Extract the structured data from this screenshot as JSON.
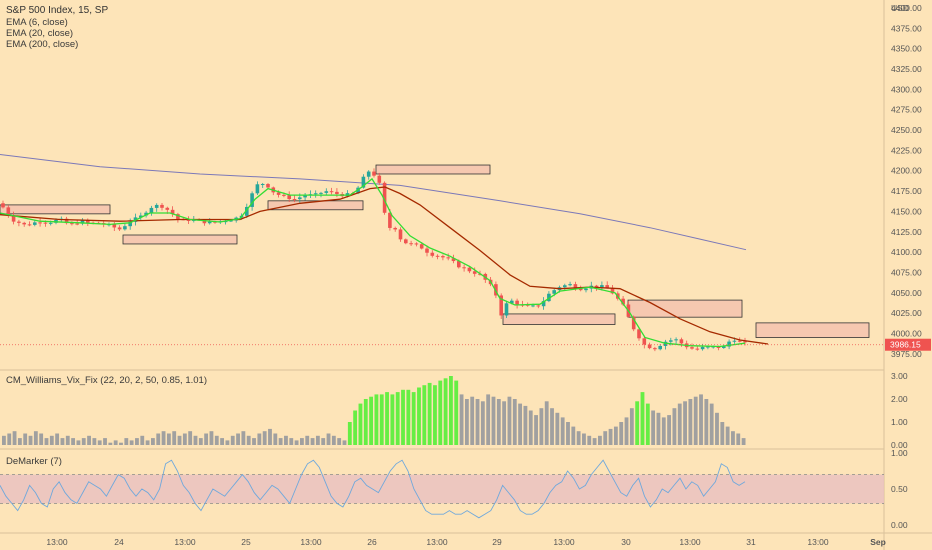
{
  "colors": {
    "background": "#fde4b8",
    "up": "#26a69a",
    "down": "#ef5350",
    "ema6": "#33dd33",
    "ema20": "#a52a00",
    "ema200": "#7b78b8",
    "zone_fill": "#f6c8b0",
    "zone_stroke": "#333333",
    "vix_hi": "#66ee44",
    "vix_lo": "#a0a0a0",
    "demarker": "#6fa8dc",
    "demarker_band": "#e8bfc0",
    "price_tag": "#ef5350"
  },
  "chart_data": [
    {
      "type": "candlestick",
      "title": "S&P 500 Index, 15, SP",
      "legend": [
        "EMA (6, close)",
        "EMA (20, close)",
        "EMA (200, close)"
      ],
      "currency": "USD",
      "ylim": [
        3960,
        4400
      ],
      "yticks": [
        "4400.00",
        "4375.00",
        "4350.00",
        "4325.00",
        "4300.00",
        "4275.00",
        "4250.00",
        "4225.00",
        "4200.00",
        "4175.00",
        "4150.00",
        "4125.00",
        "4100.00",
        "4075.00",
        "4050.00",
        "4025.00",
        "4000.00",
        "3975.00"
      ],
      "last_price": "3986.15",
      "price_path": [
        [
          0,
          4160
        ],
        [
          12,
          4140
        ],
        [
          25,
          4133
        ],
        [
          40,
          4138
        ],
        [
          50,
          4137
        ],
        [
          60,
          4140
        ],
        [
          70,
          4133
        ],
        [
          80,
          4138
        ],
        [
          90,
          4135
        ],
        [
          100,
          4136
        ],
        [
          110,
          4132
        ],
        [
          120,
          4128
        ],
        [
          130,
          4138
        ],
        [
          140,
          4143
        ],
        [
          150,
          4155
        ],
        [
          160,
          4158
        ],
        [
          170,
          4150
        ],
        [
          180,
          4138
        ],
        [
          190,
          4140
        ],
        [
          200,
          4138
        ],
        [
          210,
          4136
        ],
        [
          220,
          4138
        ],
        [
          230,
          4140
        ],
        [
          240,
          4143
        ],
        [
          248,
          4160
        ],
        [
          256,
          4182
        ],
        [
          265,
          4185
        ],
        [
          275,
          4172
        ],
        [
          285,
          4168
        ],
        [
          295,
          4165
        ],
        [
          305,
          4170
        ],
        [
          315,
          4170
        ],
        [
          325,
          4175
        ],
        [
          335,
          4172
        ],
        [
          345,
          4170
        ],
        [
          355,
          4172
        ],
        [
          362,
          4188
        ],
        [
          368,
          4200
        ],
        [
          374,
          4195
        ],
        [
          380,
          4182
        ],
        [
          384,
          4150
        ],
        [
          388,
          4130
        ],
        [
          395,
          4130
        ],
        [
          402,
          4113
        ],
        [
          410,
          4110
        ],
        [
          420,
          4107
        ],
        [
          430,
          4098
        ],
        [
          440,
          4095
        ],
        [
          450,
          4090
        ],
        [
          460,
          4082
        ],
        [
          470,
          4077
        ],
        [
          480,
          4072
        ],
        [
          490,
          4060
        ],
        [
          497,
          4045
        ],
        [
          500,
          4020
        ],
        [
          505,
          4035
        ],
        [
          512,
          4040
        ],
        [
          520,
          4035
        ],
        [
          530,
          4032
        ],
        [
          540,
          4035
        ],
        [
          550,
          4050
        ],
        [
          560,
          4058
        ],
        [
          570,
          4060
        ],
        [
          580,
          4055
        ],
        [
          590,
          4058
        ],
        [
          600,
          4058
        ],
        [
          610,
          4055
        ],
        [
          615,
          4045
        ],
        [
          620,
          4040
        ],
        [
          625,
          4030
        ],
        [
          630,
          4015
        ],
        [
          635,
          4003
        ],
        [
          645,
          3985
        ],
        [
          655,
          3982
        ],
        [
          665,
          3990
        ],
        [
          675,
          3993
        ],
        [
          685,
          3985
        ],
        [
          695,
          3980
        ],
        [
          705,
          3983
        ],
        [
          715,
          3983
        ],
        [
          725,
          3983
        ],
        [
          732,
          3995
        ],
        [
          738,
          3990
        ],
        [
          745,
          3988
        ]
      ],
      "ema6": [
        [
          0,
          4148
        ],
        [
          40,
          4138
        ],
        [
          80,
          4136
        ],
        [
          110,
          4134
        ],
        [
          130,
          4136
        ],
        [
          150,
          4148
        ],
        [
          170,
          4148
        ],
        [
          190,
          4140
        ],
        [
          220,
          4137
        ],
        [
          240,
          4141
        ],
        [
          255,
          4165
        ],
        [
          268,
          4178
        ],
        [
          290,
          4170
        ],
        [
          320,
          4170
        ],
        [
          350,
          4170
        ],
        [
          362,
          4180
        ],
        [
          372,
          4190
        ],
        [
          382,
          4170
        ],
        [
          392,
          4145
        ],
        [
          410,
          4120
        ],
        [
          430,
          4105
        ],
        [
          450,
          4095
        ],
        [
          470,
          4082
        ],
        [
          490,
          4065
        ],
        [
          500,
          4043
        ],
        [
          515,
          4035
        ],
        [
          540,
          4036
        ],
        [
          560,
          4052
        ],
        [
          590,
          4057
        ],
        [
          615,
          4050
        ],
        [
          630,
          4025
        ],
        [
          645,
          3995
        ],
        [
          665,
          3988
        ],
        [
          690,
          3985
        ],
        [
          720,
          3984
        ],
        [
          745,
          3988
        ]
      ],
      "ema20": [
        [
          0,
          4146
        ],
        [
          60,
          4140
        ],
        [
          120,
          4138
        ],
        [
          180,
          4140
        ],
        [
          240,
          4140
        ],
        [
          260,
          4150
        ],
        [
          300,
          4160
        ],
        [
          340,
          4165
        ],
        [
          370,
          4178
        ],
        [
          385,
          4180
        ],
        [
          400,
          4172
        ],
        [
          420,
          4158
        ],
        [
          450,
          4130
        ],
        [
          480,
          4102
        ],
        [
          510,
          4072
        ],
        [
          530,
          4058
        ],
        [
          560,
          4055
        ],
        [
          590,
          4057
        ],
        [
          620,
          4055
        ],
        [
          650,
          4038
        ],
        [
          680,
          4018
        ],
        [
          710,
          4002
        ],
        [
          740,
          3992
        ],
        [
          768,
          3987
        ]
      ],
      "ema200": [
        [
          0,
          4220
        ],
        [
          100,
          4205
        ],
        [
          200,
          4196
        ],
        [
          300,
          4190
        ],
        [
          400,
          4182
        ],
        [
          500,
          4163
        ],
        [
          580,
          4147
        ],
        [
          650,
          4130
        ],
        [
          700,
          4116
        ],
        [
          746,
          4103
        ]
      ],
      "zones": [
        {
          "x0": 0,
          "x1": 110,
          "y0": 4147,
          "y1": 4158
        },
        {
          "x0": 123,
          "x1": 237,
          "y0": 4110,
          "y1": 4121
        },
        {
          "x0": 268,
          "x1": 363,
          "y0": 4152,
          "y1": 4163
        },
        {
          "x0": 376,
          "x1": 490,
          "y0": 4196,
          "y1": 4207
        },
        {
          "x0": 503,
          "x1": 615,
          "y0": 4011,
          "y1": 4024
        },
        {
          "x0": 628,
          "x1": 742,
          "y0": 4020,
          "y1": 4041
        },
        {
          "x0": 756,
          "x1": 869,
          "y0": 3995,
          "y1": 4013
        }
      ]
    },
    {
      "type": "bar",
      "title": "CM_Williams_Vix_Fix (22, 20, 2, 50, 0.85, 1.01)",
      "ylim": [
        0,
        3
      ],
      "yticks": [
        "3.00",
        "2.00",
        "1.00",
        "0.00"
      ],
      "values": [
        0.4,
        0.5,
        0.6,
        0.3,
        0.5,
        0.4,
        0.6,
        0.5,
        0.3,
        0.4,
        0.5,
        0.3,
        0.4,
        0.3,
        0.2,
        0.3,
        0.4,
        0.3,
        0.2,
        0.3,
        0.1,
        0.2,
        0.1,
        0.3,
        0.2,
        0.3,
        0.4,
        0.2,
        0.3,
        0.5,
        0.6,
        0.5,
        0.6,
        0.4,
        0.5,
        0.6,
        0.4,
        0.3,
        0.5,
        0.6,
        0.4,
        0.3,
        0.2,
        0.4,
        0.5,
        0.6,
        0.4,
        0.3,
        0.5,
        0.6,
        0.7,
        0.5,
        0.3,
        0.4,
        0.3,
        0.2,
        0.3,
        0.4,
        0.3,
        0.4,
        0.3,
        0.5,
        0.4,
        0.3,
        0.2,
        1.0,
        1.5,
        1.8,
        2.0,
        2.1,
        2.2,
        2.2,
        2.3,
        2.2,
        2.3,
        2.4,
        2.4,
        2.3,
        2.5,
        2.6,
        2.7,
        2.6,
        2.8,
        2.9,
        3.0,
        2.8,
        2.2,
        2.0,
        2.1,
        2.0,
        1.9,
        2.2,
        2.1,
        2.0,
        1.9,
        2.1,
        2.0,
        1.8,
        1.7,
        1.5,
        1.3,
        1.6,
        1.9,
        1.6,
        1.4,
        1.2,
        1.0,
        0.8,
        0.6,
        0.5,
        0.4,
        0.3,
        0.4,
        0.6,
        0.7,
        0.8,
        1.0,
        1.2,
        1.6,
        1.9,
        2.3,
        1.8,
        1.5,
        1.4,
        1.2,
        1.3,
        1.6,
        1.8,
        1.9,
        2.0,
        2.1,
        2.2,
        2.0,
        1.8,
        1.4,
        1.0,
        0.8,
        0.6,
        0.5,
        0.3
      ],
      "highlight": [
        [
          65,
          85
        ],
        [
          119,
          121
        ]
      ]
    },
    {
      "type": "line",
      "title": "DeMarker (7)",
      "ylim": [
        0,
        1
      ],
      "yticks": [
        "1.00",
        "0.50",
        "0.00"
      ],
      "band": [
        0.3,
        0.7
      ],
      "values": [
        0.55,
        0.4,
        0.3,
        0.2,
        0.35,
        0.55,
        0.45,
        0.3,
        0.25,
        0.5,
        0.6,
        0.45,
        0.35,
        0.3,
        0.45,
        0.6,
        0.55,
        0.5,
        0.4,
        0.55,
        0.7,
        0.65,
        0.5,
        0.4,
        0.5,
        0.45,
        0.35,
        0.5,
        0.85,
        0.9,
        0.75,
        0.55,
        0.45,
        0.3,
        0.2,
        0.35,
        0.5,
        0.45,
        0.4,
        0.5,
        0.6,
        0.7,
        0.6,
        0.45,
        0.35,
        0.45,
        0.55,
        0.5,
        0.4,
        0.3,
        0.5,
        0.7,
        0.85,
        0.9,
        0.8,
        0.6,
        0.4,
        0.3,
        0.25,
        0.4,
        0.6,
        0.65,
        0.55,
        0.5,
        0.45,
        0.6,
        0.75,
        0.85,
        0.9,
        0.75,
        0.5,
        0.35,
        0.2,
        0.15,
        0.15,
        0.15,
        0.2,
        0.15,
        0.15,
        0.2,
        0.15,
        0.1,
        0.15,
        0.2,
        0.35,
        0.55,
        0.45,
        0.35,
        0.2,
        0.15,
        0.15,
        0.2,
        0.3,
        0.45,
        0.55,
        0.6,
        0.75,
        0.65,
        0.5,
        0.55,
        0.7,
        0.8,
        0.9,
        0.75,
        0.6,
        0.45,
        0.4,
        0.55,
        0.65,
        0.4,
        0.25,
        0.35,
        0.5,
        0.45,
        0.55,
        0.65,
        0.5,
        0.6,
        0.55,
        0.4,
        0.5,
        0.6,
        0.85,
        0.8,
        0.6,
        0.55,
        0.6
      ]
    }
  ],
  "time_axis": [
    "13:00",
    "24",
    "13:00",
    "25",
    "13:00",
    "26",
    "13:00",
    "29",
    "13:00",
    "30",
    "13:00",
    "31",
    "13:00",
    "Sep"
  ],
  "time_axis_x": [
    57,
    119,
    185,
    246,
    311,
    372,
    437,
    497,
    564,
    626,
    690,
    751,
    818,
    878
  ]
}
